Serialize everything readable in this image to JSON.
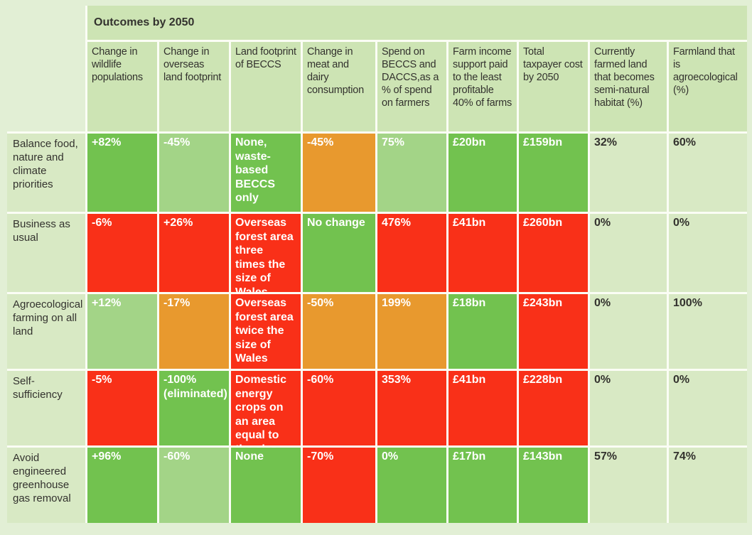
{
  "palette": {
    "page_bg": "#e2efd5",
    "gutter": "#fbfdf5",
    "header_bg": "#cde4b4",
    "neutral_bg": "#d8e9c4",
    "good": "#72c24f",
    "ok": "#a3d487",
    "warn": "#e8992e",
    "bad": "#f93018",
    "text_dark": "#33322e",
    "text_light": "#ffffff"
  },
  "chart_data": {
    "type": "table",
    "title": "Outcomes by 2050",
    "columns": [
      "Change in wildlife populations",
      "Change in overseas land footprint",
      "Land footprint of BECCS",
      "Change in meat and dairy consumption",
      "Spend on BECCS and DACCS,as a % of spend on farmers",
      "Farm income support paid to the least profitable 40% of farms",
      "Total taxpayer cost by 2050",
      "Currently farmed land that becomes semi-natural habitat (%)",
      "Farmland that is agroecological (%)"
    ],
    "tone_colors": {
      "good": "#72c24f",
      "ok": "#a3d487",
      "warn": "#e8992e",
      "bad": "#f93018",
      "neutral": "#d8e9c4"
    },
    "rows": [
      {
        "label": "Balance food, nature and climate priorities",
        "cells": [
          {
            "text": "+82%",
            "tone": "good"
          },
          {
            "text": "-45%",
            "tone": "ok"
          },
          {
            "text": "None, waste-based BECCS only",
            "tone": "good"
          },
          {
            "text": "-45%",
            "tone": "warn"
          },
          {
            "text": "75%",
            "tone": "ok"
          },
          {
            "text": "£20bn",
            "tone": "good"
          },
          {
            "text": "£159bn",
            "tone": "good"
          },
          {
            "text": "32%",
            "tone": "neutral"
          },
          {
            "text": "60%",
            "tone": "neutral"
          }
        ]
      },
      {
        "label": "Business as usual",
        "cells": [
          {
            "text": "-6%",
            "tone": "bad"
          },
          {
            "text": "+26%",
            "tone": "bad"
          },
          {
            "text": "Overseas forest area three times the size of Wales",
            "tone": "bad"
          },
          {
            "text": "No change",
            "tone": "good"
          },
          {
            "text": "476%",
            "tone": "bad"
          },
          {
            "text": "£41bn",
            "tone": "bad"
          },
          {
            "text": "£260bn",
            "tone": "bad"
          },
          {
            "text": "0%",
            "tone": "neutral"
          },
          {
            "text": "0%",
            "tone": "neutral"
          }
        ]
      },
      {
        "label": "Agroecological farming on all land",
        "cells": [
          {
            "text": "+12%",
            "tone": "ok"
          },
          {
            "text": "-17%",
            "tone": "warn"
          },
          {
            "text": "Overseas forest area twice the size of Wales",
            "tone": "bad"
          },
          {
            "text": "-50%",
            "tone": "warn"
          },
          {
            "text": "199%",
            "tone": "warn"
          },
          {
            "text": "£18bn",
            "tone": "good"
          },
          {
            "text": "£243bn",
            "tone": "bad"
          },
          {
            "text": "0%",
            "tone": "neutral"
          },
          {
            "text": "100%",
            "tone": "neutral"
          }
        ]
      },
      {
        "label": "Self-sufficiency",
        "cells": [
          {
            "text": "-5%",
            "tone": "bad"
          },
          {
            "text": "-100% (eliminated)",
            "tone": "good"
          },
          {
            "text": "Domestic energy crops on an area equal to the size Wales",
            "tone": "bad"
          },
          {
            "text": "-60%",
            "tone": "bad"
          },
          {
            "text": "353%",
            "tone": "bad"
          },
          {
            "text": "£41bn",
            "tone": "bad"
          },
          {
            "text": "£228bn",
            "tone": "bad"
          },
          {
            "text": "0%",
            "tone": "neutral"
          },
          {
            "text": "0%",
            "tone": "neutral"
          }
        ]
      },
      {
        "label": "Avoid engineered greenhouse gas removal",
        "cells": [
          {
            "text": "+96%",
            "tone": "good"
          },
          {
            "text": "-60%",
            "tone": "ok"
          },
          {
            "text": "None",
            "tone": "good"
          },
          {
            "text": "-70%",
            "tone": "bad"
          },
          {
            "text": "0%",
            "tone": "good"
          },
          {
            "text": "£17bn",
            "tone": "good"
          },
          {
            "text": "£143bn",
            "tone": "good"
          },
          {
            "text": "57%",
            "tone": "neutral"
          },
          {
            "text": "74%",
            "tone": "neutral"
          }
        ]
      }
    ]
  }
}
